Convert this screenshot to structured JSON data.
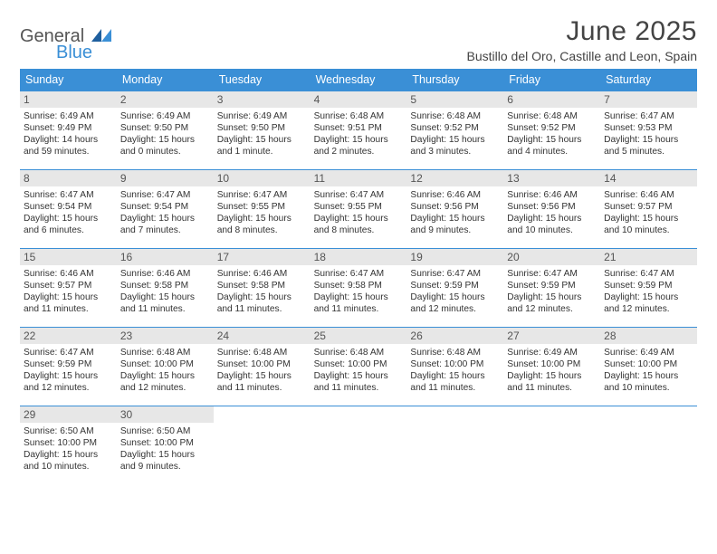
{
  "brand": {
    "word1": "General",
    "word2": "Blue"
  },
  "title": "June 2025",
  "location": "Bustillo del Oro, Castille and Leon, Spain",
  "colors": {
    "header_bg": "#3a8fd6",
    "header_fg": "#ffffff",
    "daynum_bg": "#e7e7e7",
    "text": "#333333",
    "page_bg": "#ffffff",
    "divider": "#3a8fd6"
  },
  "day_names": [
    "Sunday",
    "Monday",
    "Tuesday",
    "Wednesday",
    "Thursday",
    "Friday",
    "Saturday"
  ],
  "weeks": [
    [
      {
        "n": "1",
        "sr": "Sunrise: 6:49 AM",
        "ss": "Sunset: 9:49 PM",
        "dl1": "Daylight: 14 hours",
        "dl2": "and 59 minutes."
      },
      {
        "n": "2",
        "sr": "Sunrise: 6:49 AM",
        "ss": "Sunset: 9:50 PM",
        "dl1": "Daylight: 15 hours",
        "dl2": "and 0 minutes."
      },
      {
        "n": "3",
        "sr": "Sunrise: 6:49 AM",
        "ss": "Sunset: 9:50 PM",
        "dl1": "Daylight: 15 hours",
        "dl2": "and 1 minute."
      },
      {
        "n": "4",
        "sr": "Sunrise: 6:48 AM",
        "ss": "Sunset: 9:51 PM",
        "dl1": "Daylight: 15 hours",
        "dl2": "and 2 minutes."
      },
      {
        "n": "5",
        "sr": "Sunrise: 6:48 AM",
        "ss": "Sunset: 9:52 PM",
        "dl1": "Daylight: 15 hours",
        "dl2": "and 3 minutes."
      },
      {
        "n": "6",
        "sr": "Sunrise: 6:48 AM",
        "ss": "Sunset: 9:52 PM",
        "dl1": "Daylight: 15 hours",
        "dl2": "and 4 minutes."
      },
      {
        "n": "7",
        "sr": "Sunrise: 6:47 AM",
        "ss": "Sunset: 9:53 PM",
        "dl1": "Daylight: 15 hours",
        "dl2": "and 5 minutes."
      }
    ],
    [
      {
        "n": "8",
        "sr": "Sunrise: 6:47 AM",
        "ss": "Sunset: 9:54 PM",
        "dl1": "Daylight: 15 hours",
        "dl2": "and 6 minutes."
      },
      {
        "n": "9",
        "sr": "Sunrise: 6:47 AM",
        "ss": "Sunset: 9:54 PM",
        "dl1": "Daylight: 15 hours",
        "dl2": "and 7 minutes."
      },
      {
        "n": "10",
        "sr": "Sunrise: 6:47 AM",
        "ss": "Sunset: 9:55 PM",
        "dl1": "Daylight: 15 hours",
        "dl2": "and 8 minutes."
      },
      {
        "n": "11",
        "sr": "Sunrise: 6:47 AM",
        "ss": "Sunset: 9:55 PM",
        "dl1": "Daylight: 15 hours",
        "dl2": "and 8 minutes."
      },
      {
        "n": "12",
        "sr": "Sunrise: 6:46 AM",
        "ss": "Sunset: 9:56 PM",
        "dl1": "Daylight: 15 hours",
        "dl2": "and 9 minutes."
      },
      {
        "n": "13",
        "sr": "Sunrise: 6:46 AM",
        "ss": "Sunset: 9:56 PM",
        "dl1": "Daylight: 15 hours",
        "dl2": "and 10 minutes."
      },
      {
        "n": "14",
        "sr": "Sunrise: 6:46 AM",
        "ss": "Sunset: 9:57 PM",
        "dl1": "Daylight: 15 hours",
        "dl2": "and 10 minutes."
      }
    ],
    [
      {
        "n": "15",
        "sr": "Sunrise: 6:46 AM",
        "ss": "Sunset: 9:57 PM",
        "dl1": "Daylight: 15 hours",
        "dl2": "and 11 minutes."
      },
      {
        "n": "16",
        "sr": "Sunrise: 6:46 AM",
        "ss": "Sunset: 9:58 PM",
        "dl1": "Daylight: 15 hours",
        "dl2": "and 11 minutes."
      },
      {
        "n": "17",
        "sr": "Sunrise: 6:46 AM",
        "ss": "Sunset: 9:58 PM",
        "dl1": "Daylight: 15 hours",
        "dl2": "and 11 minutes."
      },
      {
        "n": "18",
        "sr": "Sunrise: 6:47 AM",
        "ss": "Sunset: 9:58 PM",
        "dl1": "Daylight: 15 hours",
        "dl2": "and 11 minutes."
      },
      {
        "n": "19",
        "sr": "Sunrise: 6:47 AM",
        "ss": "Sunset: 9:59 PM",
        "dl1": "Daylight: 15 hours",
        "dl2": "and 12 minutes."
      },
      {
        "n": "20",
        "sr": "Sunrise: 6:47 AM",
        "ss": "Sunset: 9:59 PM",
        "dl1": "Daylight: 15 hours",
        "dl2": "and 12 minutes."
      },
      {
        "n": "21",
        "sr": "Sunrise: 6:47 AM",
        "ss": "Sunset: 9:59 PM",
        "dl1": "Daylight: 15 hours",
        "dl2": "and 12 minutes."
      }
    ],
    [
      {
        "n": "22",
        "sr": "Sunrise: 6:47 AM",
        "ss": "Sunset: 9:59 PM",
        "dl1": "Daylight: 15 hours",
        "dl2": "and 12 minutes."
      },
      {
        "n": "23",
        "sr": "Sunrise: 6:48 AM",
        "ss": "Sunset: 10:00 PM",
        "dl1": "Daylight: 15 hours",
        "dl2": "and 12 minutes."
      },
      {
        "n": "24",
        "sr": "Sunrise: 6:48 AM",
        "ss": "Sunset: 10:00 PM",
        "dl1": "Daylight: 15 hours",
        "dl2": "and 11 minutes."
      },
      {
        "n": "25",
        "sr": "Sunrise: 6:48 AM",
        "ss": "Sunset: 10:00 PM",
        "dl1": "Daylight: 15 hours",
        "dl2": "and 11 minutes."
      },
      {
        "n": "26",
        "sr": "Sunrise: 6:48 AM",
        "ss": "Sunset: 10:00 PM",
        "dl1": "Daylight: 15 hours",
        "dl2": "and 11 minutes."
      },
      {
        "n": "27",
        "sr": "Sunrise: 6:49 AM",
        "ss": "Sunset: 10:00 PM",
        "dl1": "Daylight: 15 hours",
        "dl2": "and 11 minutes."
      },
      {
        "n": "28",
        "sr": "Sunrise: 6:49 AM",
        "ss": "Sunset: 10:00 PM",
        "dl1": "Daylight: 15 hours",
        "dl2": "and 10 minutes."
      }
    ],
    [
      {
        "n": "29",
        "sr": "Sunrise: 6:50 AM",
        "ss": "Sunset: 10:00 PM",
        "dl1": "Daylight: 15 hours",
        "dl2": "and 10 minutes."
      },
      {
        "n": "30",
        "sr": "Sunrise: 6:50 AM",
        "ss": "Sunset: 10:00 PM",
        "dl1": "Daylight: 15 hours",
        "dl2": "and 9 minutes."
      },
      null,
      null,
      null,
      null,
      null
    ]
  ]
}
